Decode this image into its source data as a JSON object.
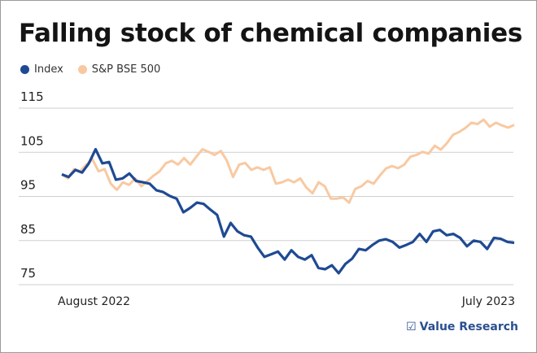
{
  "chart_data": {
    "type": "line",
    "title": "Falling stock of chemical companies",
    "xlabel": "",
    "ylabel": "",
    "x_tick_labels": [
      "August 2022",
      "July 2023"
    ],
    "y_ticks": [
      75,
      85,
      95,
      105,
      115
    ],
    "ylim": [
      75,
      115
    ],
    "grid": "horizontal",
    "legend_placement": "top-left",
    "series": [
      {
        "name": "Index",
        "color": "#1f4a93",
        "values": [
          100.0,
          99.4,
          101,
          100.4,
          102.5,
          105.7,
          102.5,
          102.8,
          98.8,
          99.1,
          100.2,
          98.5,
          98.2,
          97.9,
          96.4,
          96.0,
          95.1,
          94.5,
          91.4,
          92.4,
          93.6,
          93.3,
          92.0,
          90.8,
          85.9,
          89.0,
          87.1,
          86.2,
          85.9,
          83.4,
          81.3,
          81.9,
          82.5,
          80.7,
          82.8,
          81.3,
          80.7,
          81.7,
          78.8,
          78.5,
          79.4,
          77.6,
          79.7,
          80.9,
          83.1,
          82.8,
          84.0,
          85.0,
          85.3,
          84.7,
          83.4,
          84.0,
          84.7,
          86.5,
          84.7,
          87.1,
          87.4,
          86.2,
          86.5,
          85.6,
          83.7,
          85.0,
          84.7,
          83.1,
          85.6,
          85.4,
          84.7,
          84.5
        ]
      },
      {
        "name": "S&P BSE 500",
        "color": "#f8c9a1",
        "values": [
          100.0,
          99.1,
          101.2,
          100.7,
          102.2,
          103.4,
          100.7,
          101.2,
          97.9,
          96.5,
          98.2,
          97.6,
          99.1,
          97.3,
          98.5,
          99.7,
          100.7,
          102.5,
          103.1,
          102.2,
          103.7,
          102.2,
          104.0,
          105.7,
          105.1,
          104.4,
          105.3,
          103.1,
          99.4,
          102.2,
          102.6,
          101.0,
          101.6,
          101.0,
          101.6,
          97.9,
          98.2,
          98.8,
          98.2,
          99.1,
          97.0,
          95.7,
          98.2,
          97.3,
          94.5,
          94.5,
          94.8,
          93.6,
          96.7,
          97.3,
          98.5,
          97.9,
          99.7,
          101.3,
          101.9,
          101.4,
          102.2,
          104.0,
          104.4,
          105.1,
          104.7,
          106.5,
          105.6,
          107.1,
          109.0,
          109.6,
          110.5,
          111.7,
          111.4,
          112.4,
          110.8,
          111.7,
          111.1,
          110.6,
          111.2
        ]
      }
    ]
  },
  "brand": {
    "icon": "checkbox-icon",
    "name": "Value Research"
  }
}
